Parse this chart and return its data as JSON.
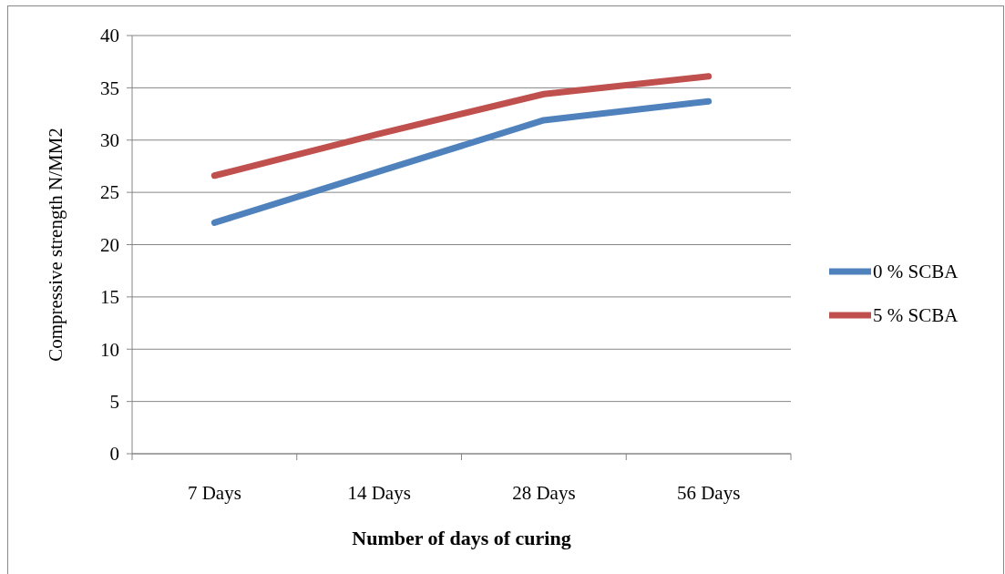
{
  "chart_data": {
    "type": "line",
    "xlabel": "Number of days of curing",
    "ylabel": "Compressive strength N/MM2",
    "categories": [
      "7 Days",
      "14 Days",
      "28 Days",
      "56 Days"
    ],
    "series": [
      {
        "name": "0 % SCBA",
        "color": "#4f81bd",
        "values": [
          22.1,
          27.0,
          31.9,
          33.7
        ]
      },
      {
        "name": "5 % SCBA",
        "color": "#c0504d",
        "values": [
          26.6,
          30.6,
          34.4,
          36.1
        ]
      }
    ],
    "ylim": [
      0,
      40
    ],
    "yticks": [
      0,
      5,
      10,
      15,
      20,
      25,
      30,
      35,
      40
    ],
    "grid": "y",
    "legend": "right",
    "marker": "none",
    "line_style": "solid"
  }
}
